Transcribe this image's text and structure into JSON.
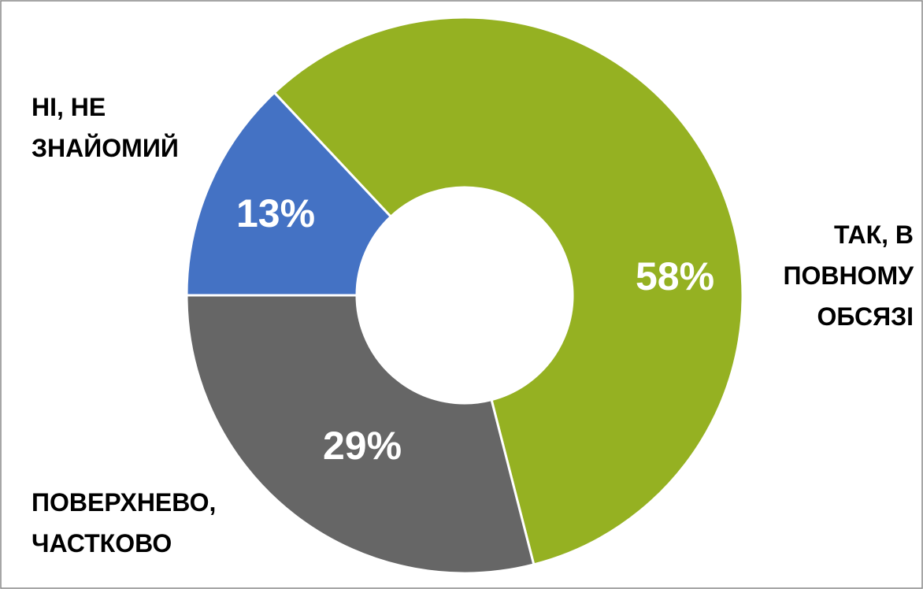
{
  "chart_data": {
    "type": "donut",
    "categories": [
      "ТАК, В ПОВНОМУ ОБСЯЗІ",
      "ПОВЕРХНЕВО, ЧАСТКОВО",
      "НІ, НЕ ЗНАЙОМИЙ"
    ],
    "values": [
      58,
      29,
      13
    ],
    "value_labels": [
      "58%",
      "29%",
      "13%"
    ],
    "colors": [
      "#95b122",
      "#666666",
      "#4472c4"
    ]
  }
}
